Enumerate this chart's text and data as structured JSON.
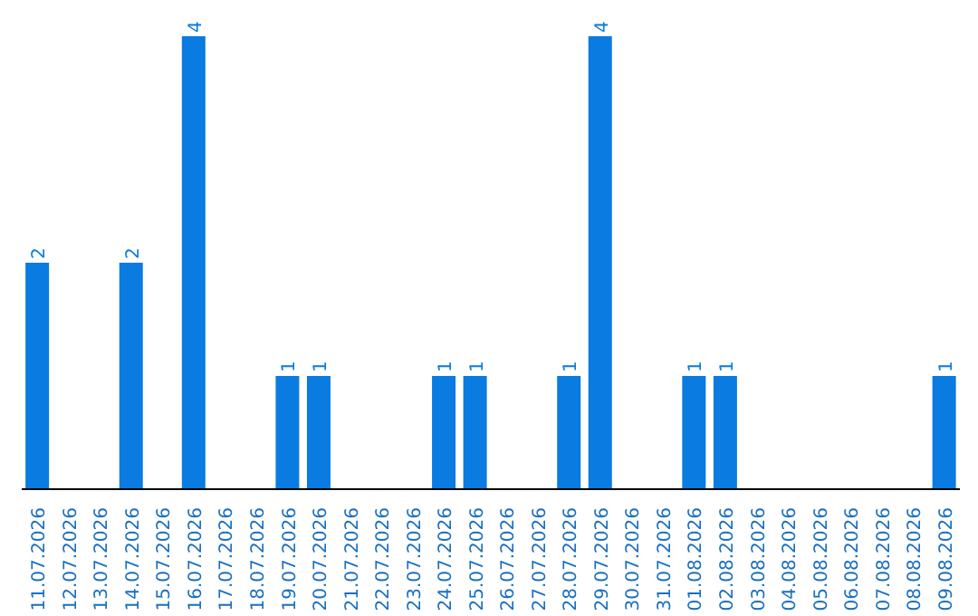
{
  "chart_data": {
    "type": "bar",
    "categories": [
      "11.07.2026",
      "12.07.2026",
      "13.07.2026",
      "14.07.2026",
      "15.07.2026",
      "16.07.2026",
      "17.07.2026",
      "18.07.2026",
      "19.07.2026",
      "20.07.2026",
      "21.07.2026",
      "22.07.2026",
      "23.07.2026",
      "24.07.2026",
      "25.07.2026",
      "26.07.2026",
      "27.07.2026",
      "28.07.2026",
      "29.07.2026",
      "30.07.2026",
      "31.07.2026",
      "01.08.2026",
      "02.08.2026",
      "03.08.2026",
      "04.08.2026",
      "05.08.2026",
      "06.08.2026",
      "07.08.2026",
      "08.08.2026",
      "09.08.2026"
    ],
    "values": [
      2,
      0,
      0,
      2,
      0,
      4,
      0,
      0,
      1,
      1,
      0,
      0,
      0,
      1,
      1,
      0,
      0,
      1,
      4,
      0,
      0,
      1,
      1,
      0,
      0,
      0,
      0,
      0,
      0,
      1
    ],
    "value_labels": [
      "2",
      null,
      null,
      "2",
      null,
      "4",
      null,
      null,
      "1",
      "1",
      null,
      null,
      null,
      "1",
      "1",
      null,
      null,
      "1",
      "4",
      null,
      null,
      "1",
      "1",
      null,
      null,
      null,
      null,
      null,
      null,
      "1"
    ],
    "color": "#0a7be0",
    "tick_labels": "x"
  }
}
